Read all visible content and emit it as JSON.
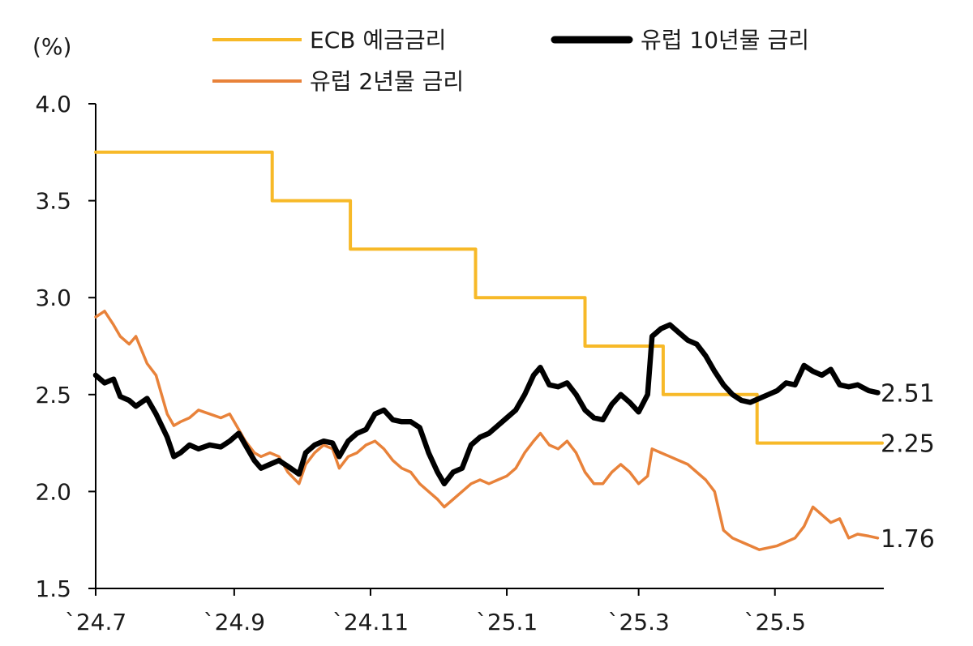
{
  "chart_data": {
    "type": "line",
    "title": "",
    "xlabel": "",
    "ylabel": "(%)",
    "ylim": [
      1.5,
      4.0
    ],
    "yticks": [
      "1.5",
      "2.0",
      "2.5",
      "3.0",
      "3.5",
      "4.0"
    ],
    "xticks": [
      "`24.7",
      "`24.9",
      "`24.11",
      "`25.1",
      "`25.3",
      "`25.5"
    ],
    "xlim": [
      "2024-07-01",
      "2025-06-18"
    ],
    "grid": false,
    "legend_position": "top",
    "series": [
      {
        "name": "ECB 예금금리",
        "color": "#f7b928",
        "style": "step",
        "end_label": "2.25",
        "points": [
          [
            "2024-07-01",
            3.75
          ],
          [
            "2024-09-18",
            3.5
          ],
          [
            "2024-10-23",
            3.25
          ],
          [
            "2024-12-18",
            3.0
          ],
          [
            "2025-02-05",
            2.75
          ],
          [
            "2025-03-12",
            2.5
          ],
          [
            "2025-04-23",
            2.25
          ],
          [
            "2025-06-18",
            2.25
          ]
        ]
      },
      {
        "name": "유럽 10년물 금리",
        "color": "#000000",
        "style": "line",
        "end_label": "2.51",
        "points": [
          [
            "2024-07-01",
            2.6
          ],
          [
            "2024-07-05",
            2.56
          ],
          [
            "2024-07-09",
            2.58
          ],
          [
            "2024-07-12",
            2.49
          ],
          [
            "2024-07-16",
            2.47
          ],
          [
            "2024-07-19",
            2.44
          ],
          [
            "2024-07-24",
            2.48
          ],
          [
            "2024-07-28",
            2.4
          ],
          [
            "2024-08-02",
            2.28
          ],
          [
            "2024-08-05",
            2.18
          ],
          [
            "2024-08-08",
            2.2
          ],
          [
            "2024-08-12",
            2.24
          ],
          [
            "2024-08-16",
            2.22
          ],
          [
            "2024-08-21",
            2.24
          ],
          [
            "2024-08-26",
            2.23
          ],
          [
            "2024-08-30",
            2.26
          ],
          [
            "2024-09-03",
            2.3
          ],
          [
            "2024-09-06",
            2.24
          ],
          [
            "2024-09-10",
            2.16
          ],
          [
            "2024-09-13",
            2.12
          ],
          [
            "2024-09-17",
            2.14
          ],
          [
            "2024-09-21",
            2.16
          ],
          [
            "2024-09-25",
            2.13
          ],
          [
            "2024-09-30",
            2.09
          ],
          [
            "2024-10-03",
            2.2
          ],
          [
            "2024-10-07",
            2.24
          ],
          [
            "2024-10-11",
            2.26
          ],
          [
            "2024-10-15",
            2.25
          ],
          [
            "2024-10-18",
            2.18
          ],
          [
            "2024-10-22",
            2.26
          ],
          [
            "2024-10-26",
            2.3
          ],
          [
            "2024-10-30",
            2.32
          ],
          [
            "2024-11-03",
            2.4
          ],
          [
            "2024-11-07",
            2.42
          ],
          [
            "2024-11-11",
            2.37
          ],
          [
            "2024-11-15",
            2.36
          ],
          [
            "2024-11-19",
            2.36
          ],
          [
            "2024-11-23",
            2.33
          ],
          [
            "2024-11-27",
            2.2
          ],
          [
            "2024-12-01",
            2.1
          ],
          [
            "2024-12-04",
            2.04
          ],
          [
            "2024-12-08",
            2.1
          ],
          [
            "2024-12-12",
            2.12
          ],
          [
            "2024-12-16",
            2.24
          ],
          [
            "2024-12-20",
            2.28
          ],
          [
            "2024-12-24",
            2.3
          ],
          [
            "2024-12-28",
            2.34
          ],
          [
            "2025-01-01",
            2.38
          ],
          [
            "2025-01-05",
            2.42
          ],
          [
            "2025-01-09",
            2.5
          ],
          [
            "2025-01-13",
            2.6
          ],
          [
            "2025-01-16",
            2.64
          ],
          [
            "2025-01-20",
            2.55
          ],
          [
            "2025-01-24",
            2.54
          ],
          [
            "2025-01-28",
            2.56
          ],
          [
            "2025-02-01",
            2.5
          ],
          [
            "2025-02-05",
            2.42
          ],
          [
            "2025-02-09",
            2.38
          ],
          [
            "2025-02-13",
            2.37
          ],
          [
            "2025-02-17",
            2.45
          ],
          [
            "2025-02-21",
            2.5
          ],
          [
            "2025-02-25",
            2.46
          ],
          [
            "2025-03-01",
            2.41
          ],
          [
            "2025-03-05",
            2.5
          ],
          [
            "2025-03-07",
            2.8
          ],
          [
            "2025-03-11",
            2.84
          ],
          [
            "2025-03-15",
            2.86
          ],
          [
            "2025-03-19",
            2.82
          ],
          [
            "2025-03-23",
            2.78
          ],
          [
            "2025-03-27",
            2.76
          ],
          [
            "2025-03-31",
            2.7
          ],
          [
            "2025-04-04",
            2.62
          ],
          [
            "2025-04-08",
            2.55
          ],
          [
            "2025-04-12",
            2.5
          ],
          [
            "2025-04-16",
            2.47
          ],
          [
            "2025-04-20",
            2.46
          ],
          [
            "2025-04-24",
            2.48
          ],
          [
            "2025-04-28",
            2.5
          ],
          [
            "2025-05-02",
            2.52
          ],
          [
            "2025-05-06",
            2.56
          ],
          [
            "2025-05-10",
            2.55
          ],
          [
            "2025-05-14",
            2.65
          ],
          [
            "2025-05-18",
            2.62
          ],
          [
            "2025-05-22",
            2.6
          ],
          [
            "2025-05-26",
            2.63
          ],
          [
            "2025-05-30",
            2.55
          ],
          [
            "2025-06-03",
            2.54
          ],
          [
            "2025-06-07",
            2.55
          ],
          [
            "2025-06-12",
            2.52
          ],
          [
            "2025-06-16",
            2.51
          ]
        ]
      },
      {
        "name": "유럽 2년물 금리",
        "color": "#e8823a",
        "style": "line",
        "end_label": "1.76",
        "points": [
          [
            "2024-07-01",
            2.9
          ],
          [
            "2024-07-05",
            2.93
          ],
          [
            "2024-07-09",
            2.86
          ],
          [
            "2024-07-12",
            2.8
          ],
          [
            "2024-07-16",
            2.76
          ],
          [
            "2024-07-19",
            2.8
          ],
          [
            "2024-07-24",
            2.66
          ],
          [
            "2024-07-28",
            2.6
          ],
          [
            "2024-08-02",
            2.4
          ],
          [
            "2024-08-05",
            2.34
          ],
          [
            "2024-08-08",
            2.36
          ],
          [
            "2024-08-12",
            2.38
          ],
          [
            "2024-08-16",
            2.42
          ],
          [
            "2024-08-21",
            2.4
          ],
          [
            "2024-08-26",
            2.38
          ],
          [
            "2024-08-30",
            2.4
          ],
          [
            "2024-09-03",
            2.32
          ],
          [
            "2024-09-06",
            2.26
          ],
          [
            "2024-09-10",
            2.2
          ],
          [
            "2024-09-13",
            2.18
          ],
          [
            "2024-09-17",
            2.2
          ],
          [
            "2024-09-21",
            2.18
          ],
          [
            "2024-09-25",
            2.1
          ],
          [
            "2024-09-30",
            2.04
          ],
          [
            "2024-10-03",
            2.14
          ],
          [
            "2024-10-07",
            2.2
          ],
          [
            "2024-10-11",
            2.24
          ],
          [
            "2024-10-15",
            2.22
          ],
          [
            "2024-10-18",
            2.12
          ],
          [
            "2024-10-22",
            2.18
          ],
          [
            "2024-10-26",
            2.2
          ],
          [
            "2024-10-30",
            2.24
          ],
          [
            "2024-11-03",
            2.26
          ],
          [
            "2024-11-07",
            2.22
          ],
          [
            "2024-11-11",
            2.16
          ],
          [
            "2024-11-15",
            2.12
          ],
          [
            "2024-11-19",
            2.1
          ],
          [
            "2024-11-23",
            2.04
          ],
          [
            "2024-11-27",
            2.0
          ],
          [
            "2024-12-01",
            1.96
          ],
          [
            "2024-12-04",
            1.92
          ],
          [
            "2024-12-08",
            1.96
          ],
          [
            "2024-12-12",
            2.0
          ],
          [
            "2024-12-16",
            2.04
          ],
          [
            "2024-12-20",
            2.06
          ],
          [
            "2024-12-24",
            2.04
          ],
          [
            "2024-12-28",
            2.06
          ],
          [
            "2025-01-01",
            2.08
          ],
          [
            "2025-01-05",
            2.12
          ],
          [
            "2025-01-09",
            2.2
          ],
          [
            "2025-01-13",
            2.26
          ],
          [
            "2025-01-16",
            2.3
          ],
          [
            "2025-01-20",
            2.24
          ],
          [
            "2025-01-24",
            2.22
          ],
          [
            "2025-01-28",
            2.26
          ],
          [
            "2025-02-01",
            2.2
          ],
          [
            "2025-02-05",
            2.1
          ],
          [
            "2025-02-09",
            2.04
          ],
          [
            "2025-02-13",
            2.04
          ],
          [
            "2025-02-17",
            2.1
          ],
          [
            "2025-02-21",
            2.14
          ],
          [
            "2025-02-25",
            2.1
          ],
          [
            "2025-03-01",
            2.04
          ],
          [
            "2025-03-05",
            2.08
          ],
          [
            "2025-03-07",
            2.22
          ],
          [
            "2025-03-11",
            2.2
          ],
          [
            "2025-03-15",
            2.18
          ],
          [
            "2025-03-19",
            2.16
          ],
          [
            "2025-03-23",
            2.14
          ],
          [
            "2025-03-27",
            2.1
          ],
          [
            "2025-03-31",
            2.06
          ],
          [
            "2025-04-04",
            2.0
          ],
          [
            "2025-04-08",
            1.8
          ],
          [
            "2025-04-12",
            1.76
          ],
          [
            "2025-04-16",
            1.74
          ],
          [
            "2025-04-20",
            1.72
          ],
          [
            "2025-04-24",
            1.7
          ],
          [
            "2025-04-28",
            1.71
          ],
          [
            "2025-05-02",
            1.72
          ],
          [
            "2025-05-06",
            1.74
          ],
          [
            "2025-05-10",
            1.76
          ],
          [
            "2025-05-14",
            1.82
          ],
          [
            "2025-05-18",
            1.92
          ],
          [
            "2025-05-22",
            1.88
          ],
          [
            "2025-05-26",
            1.84
          ],
          [
            "2025-05-30",
            1.86
          ],
          [
            "2025-06-03",
            1.76
          ],
          [
            "2025-06-07",
            1.78
          ],
          [
            "2025-06-12",
            1.77
          ],
          [
            "2025-06-16",
            1.76
          ]
        ]
      }
    ]
  }
}
